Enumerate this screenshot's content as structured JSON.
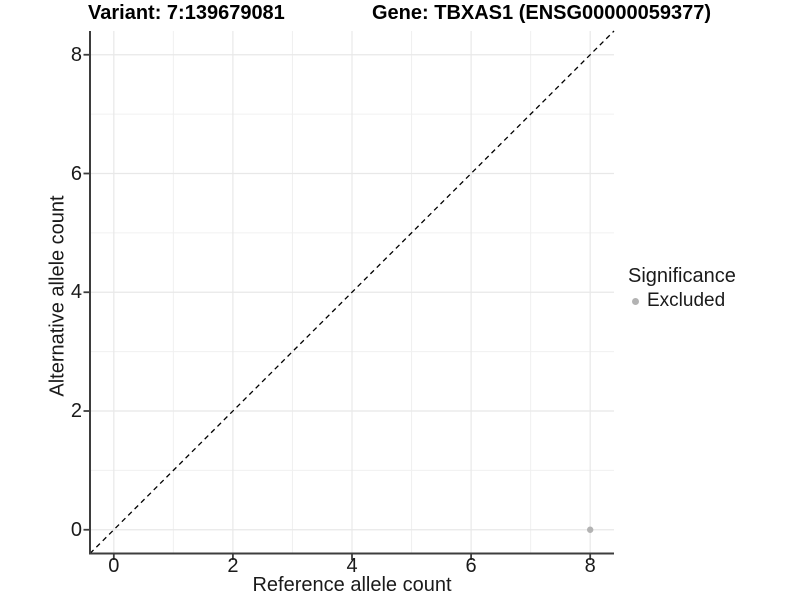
{
  "chart_data": {
    "type": "scatter",
    "title_left": "Variant: 7:139679081",
    "title_right": "Gene: TBXAS1 (ENSG00000059377)",
    "xlabel": "Reference allele count",
    "ylabel": "Alternative allele count",
    "xlim": [
      -0.4,
      8.4
    ],
    "ylim": [
      -0.4,
      8.4
    ],
    "x_ticks": [
      0,
      2,
      4,
      6,
      8
    ],
    "y_ticks": [
      0,
      2,
      4,
      6,
      8
    ],
    "x_minor_ticks": [
      1,
      3,
      5,
      7
    ],
    "y_minor_ticks": [
      1,
      3,
      5,
      7
    ],
    "grid": "major and minor, light gray",
    "points": [
      {
        "x": 8,
        "y": 0,
        "series": "Excluded",
        "color": "#b3b3b3"
      }
    ],
    "reference_line": {
      "type": "identity y=x",
      "style": "dashed",
      "color": "#000000",
      "from": [
        -0.4,
        -0.4
      ],
      "to": [
        8.4,
        8.4
      ]
    },
    "legend": {
      "title": "Significance",
      "position": "right",
      "entries": [
        {
          "label": "Excluded",
          "color": "#b3b3b3"
        }
      ]
    },
    "colors": {
      "grid_major": "#e8e8e8",
      "grid_minor": "#f0f0f0",
      "axis_line": "#3d3d3d",
      "text": "#1a1a1a"
    }
  }
}
